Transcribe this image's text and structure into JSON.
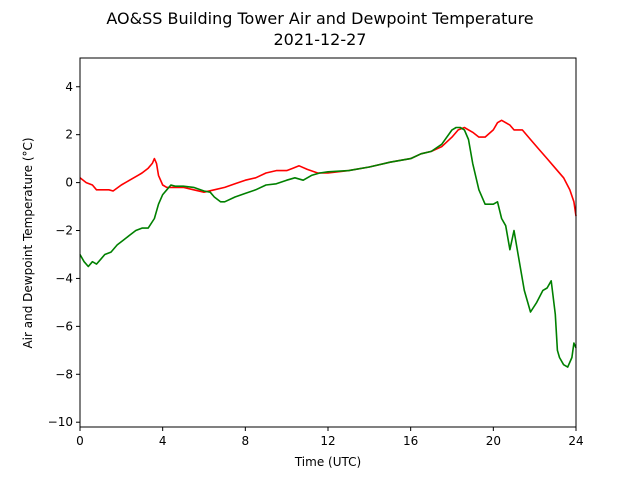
{
  "chart_data": {
    "type": "line",
    "title": "AO&SS Building Tower Air and Dewpoint Temperature",
    "subtitle": "2021-12-27",
    "xlabel": "Time (UTC)",
    "ylabel": "Air and Dewpoint Temperature (°C)",
    "xlim": [
      0,
      24
    ],
    "ylim": [
      -10.2,
      5.2
    ],
    "xticks": [
      0,
      4,
      8,
      12,
      16,
      20,
      24
    ],
    "yticks": [
      -10,
      -8,
      -6,
      -4,
      -2,
      0,
      2,
      4
    ],
    "grid": false,
    "series": [
      {
        "color": "#ff0000",
        "x": [
          0,
          0.3,
          0.6,
          0.8,
          1.0,
          1.2,
          1.4,
          1.6,
          2.0,
          2.4,
          2.8,
          3.0,
          3.3,
          3.5,
          3.6,
          3.7,
          3.8,
          4.0,
          4.2,
          4.6,
          5.0,
          5.5,
          6.0,
          6.5,
          7.0,
          7.5,
          8.0,
          8.5,
          9.0,
          9.5,
          10.0,
          10.3,
          10.6,
          11.0,
          11.5,
          12.0,
          13.0,
          14.0,
          15.0,
          16.0,
          16.5,
          17.0,
          17.5,
          18.0,
          18.3,
          18.6,
          19.0,
          19.3,
          19.6,
          20.0,
          20.2,
          20.4,
          20.8,
          21.0,
          21.4,
          21.8,
          22.2,
          22.6,
          23.0,
          23.4,
          23.7,
          23.9,
          24.0
        ],
        "y": [
          0.2,
          0.0,
          -0.1,
          -0.3,
          -0.3,
          -0.3,
          -0.3,
          -0.35,
          -0.1,
          0.1,
          0.3,
          0.4,
          0.6,
          0.8,
          1.0,
          0.8,
          0.3,
          -0.1,
          -0.2,
          -0.2,
          -0.2,
          -0.3,
          -0.4,
          -0.3,
          -0.2,
          -0.05,
          0.1,
          0.2,
          0.4,
          0.5,
          0.5,
          0.6,
          0.7,
          0.55,
          0.4,
          0.4,
          0.5,
          0.65,
          0.85,
          1.0,
          1.2,
          1.3,
          1.5,
          1.9,
          2.2,
          2.3,
          2.1,
          1.9,
          1.9,
          2.2,
          2.5,
          2.6,
          2.4,
          2.2,
          2.2,
          1.8,
          1.4,
          1.0,
          0.6,
          0.2,
          -0.3,
          -0.8,
          -1.4
        ]
      },
      {
        "color": "#008000",
        "x": [
          0,
          0.2,
          0.4,
          0.6,
          0.8,
          1.0,
          1.2,
          1.5,
          1.8,
          2.1,
          2.4,
          2.7,
          3.0,
          3.3,
          3.6,
          3.8,
          4.0,
          4.2,
          4.4,
          4.6,
          5.0,
          5.5,
          6.0,
          6.3,
          6.5,
          6.8,
          7.0,
          7.5,
          8.0,
          8.5,
          9.0,
          9.5,
          10.0,
          10.4,
          10.8,
          11.2,
          11.6,
          12.0,
          13.0,
          14.0,
          15.0,
          16.0,
          16.5,
          17.0,
          17.5,
          18.0,
          18.2,
          18.4,
          18.6,
          18.8,
          19.0,
          19.3,
          19.6,
          20.0,
          20.2,
          20.4,
          20.6,
          20.8,
          21.0,
          21.2,
          21.5,
          21.8,
          22.1,
          22.4,
          22.6,
          22.8,
          23.0,
          23.1,
          23.2,
          23.4,
          23.6,
          23.8,
          23.9,
          24.0
        ],
        "y": [
          -3.0,
          -3.3,
          -3.5,
          -3.3,
          -3.4,
          -3.2,
          -3.0,
          -2.9,
          -2.6,
          -2.4,
          -2.2,
          -2.0,
          -1.9,
          -1.9,
          -1.5,
          -0.9,
          -0.5,
          -0.3,
          -0.1,
          -0.15,
          -0.15,
          -0.2,
          -0.35,
          -0.4,
          -0.6,
          -0.8,
          -0.8,
          -0.6,
          -0.45,
          -0.3,
          -0.1,
          -0.05,
          0.1,
          0.2,
          0.1,
          0.3,
          0.4,
          0.45,
          0.5,
          0.65,
          0.85,
          1.0,
          1.2,
          1.3,
          1.6,
          2.2,
          2.3,
          2.3,
          2.2,
          1.8,
          0.8,
          -0.3,
          -0.9,
          -0.9,
          -0.8,
          -1.5,
          -1.8,
          -2.8,
          -2.0,
          -3.0,
          -4.5,
          -5.4,
          -5.0,
          -4.5,
          -4.4,
          -4.1,
          -5.5,
          -7.0,
          -7.3,
          -7.6,
          -7.7,
          -7.3,
          -6.7,
          -6.9
        ]
      }
    ]
  }
}
